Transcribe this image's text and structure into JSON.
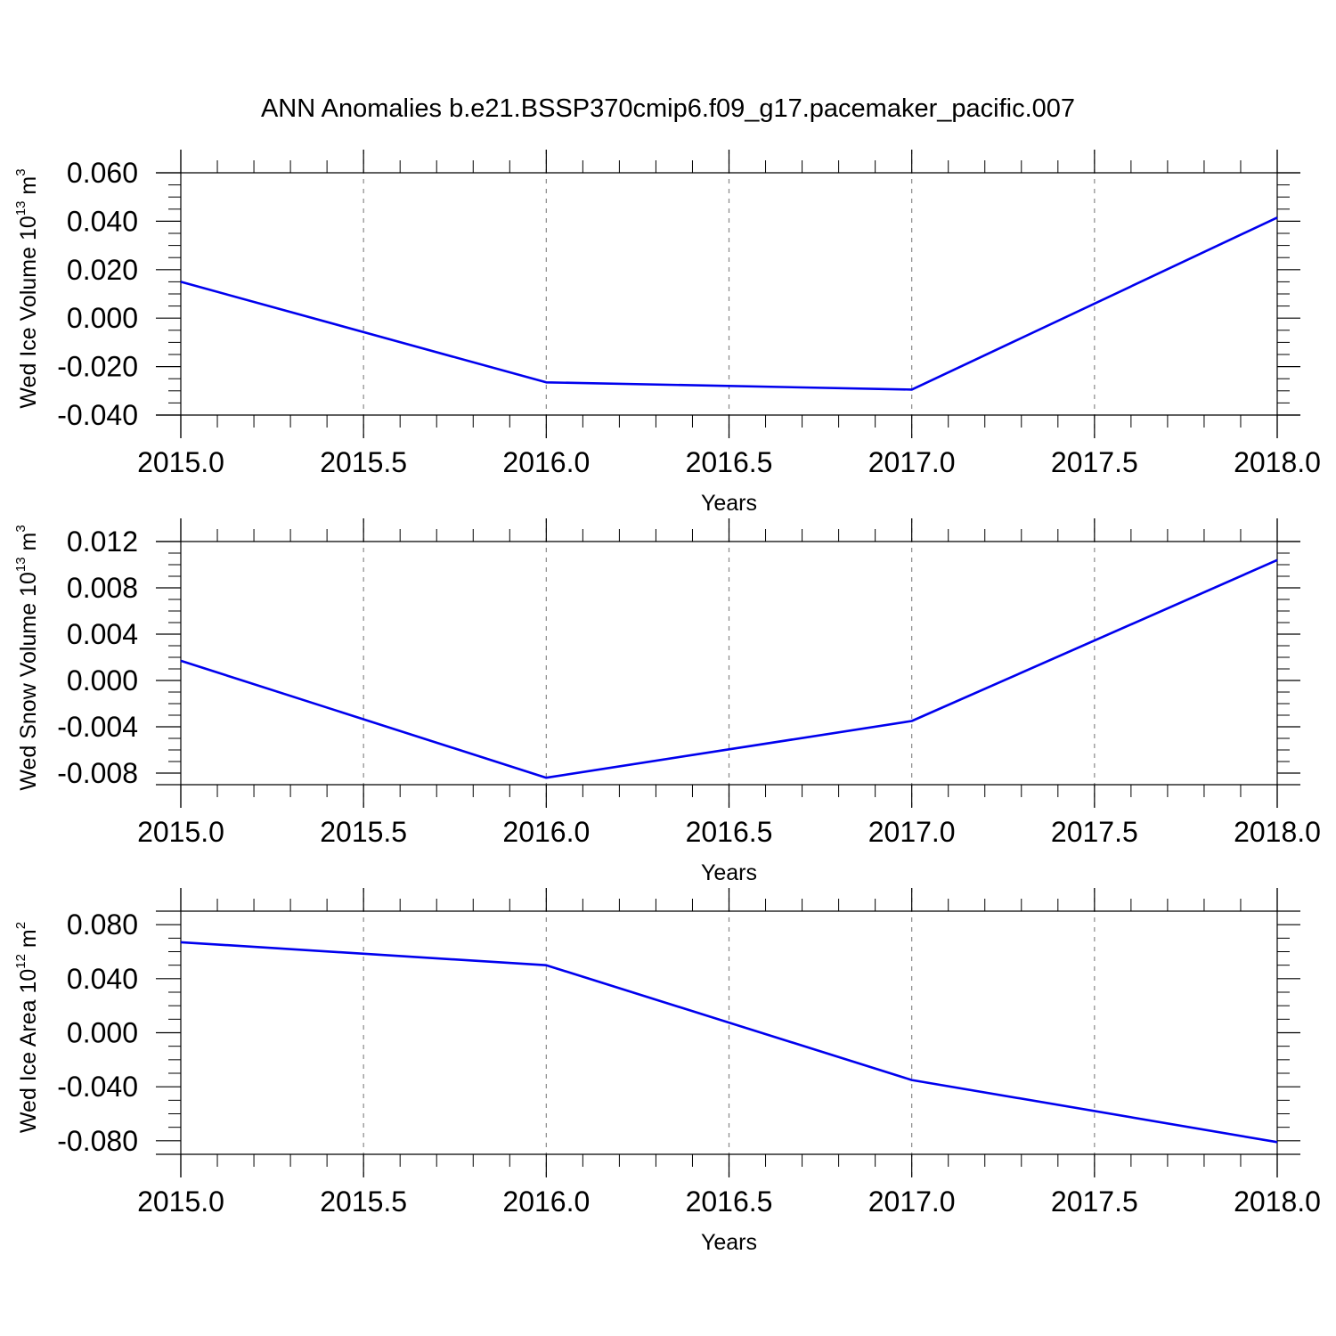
{
  "figure_title": "ANN Anomalies b.e21.BSSP370cmip6.f09_g17.pacemaker_pacific.007",
  "line_color": "#0000ee",
  "chart_data": [
    {
      "type": "line",
      "x": [
        2015.0,
        2016.0,
        2017.0,
        2018.0
      ],
      "series": [
        {
          "values": [
            0.015,
            -0.0265,
            -0.0295,
            0.0415
          ]
        }
      ],
      "xlabel": "Years",
      "ylabel": {
        "text": "Wed Ice Volume 10",
        "exp1": "13",
        "mid": " m",
        "exp2": "3"
      },
      "xlim": [
        2015.0,
        2018.0
      ],
      "ylim": [
        -0.04,
        0.06
      ],
      "xticks": [
        2015.0,
        2015.5,
        2016.0,
        2016.5,
        2017.0,
        2017.5,
        2018.0
      ],
      "xtick_labels": [
        "2015.0",
        "2015.5",
        "2016.0",
        "2016.5",
        "2017.0",
        "2017.5",
        "2018.0"
      ],
      "yticks": [
        -0.04,
        -0.02,
        0.0,
        0.02,
        0.04,
        0.06
      ],
      "ytick_labels": [
        "-0.040",
        "-0.020",
        "0.000",
        "0.020",
        "0.040",
        "0.060"
      ],
      "grid": "vertical dashed at x ticks"
    },
    {
      "type": "line",
      "x": [
        2015.0,
        2016.0,
        2017.0,
        2018.0
      ],
      "series": [
        {
          "values": [
            0.0017,
            -0.0084,
            -0.0035,
            0.0104
          ]
        }
      ],
      "xlabel": "Years",
      "ylabel": {
        "text": "Wed Snow Volume 10",
        "exp1": "13",
        "mid": " m",
        "exp2": "3"
      },
      "xlim": [
        2015.0,
        2018.0
      ],
      "ylim": [
        -0.009,
        0.012
      ],
      "xticks": [
        2015.0,
        2015.5,
        2016.0,
        2016.5,
        2017.0,
        2017.5,
        2018.0
      ],
      "xtick_labels": [
        "2015.0",
        "2015.5",
        "2016.0",
        "2016.5",
        "2017.0",
        "2017.5",
        "2018.0"
      ],
      "yticks": [
        -0.008,
        -0.004,
        0.0,
        0.004,
        0.008,
        0.012
      ],
      "ytick_labels": [
        "-0.008",
        "-0.004",
        "0.000",
        "0.004",
        "0.008",
        "0.012"
      ],
      "grid": "vertical dashed at x ticks"
    },
    {
      "type": "line",
      "x": [
        2015.0,
        2016.0,
        2017.0,
        2018.0
      ],
      "series": [
        {
          "values": [
            0.067,
            0.05,
            -0.035,
            -0.081
          ]
        }
      ],
      "xlabel": "Years",
      "ylabel": {
        "text": "Wed Ice Area 10",
        "exp1": "12",
        "mid": " m",
        "exp2": "2"
      },
      "xlim": [
        2015.0,
        2018.0
      ],
      "ylim": [
        -0.09,
        0.09
      ],
      "xticks": [
        2015.0,
        2015.5,
        2016.0,
        2016.5,
        2017.0,
        2017.5,
        2018.0
      ],
      "xtick_labels": [
        "2015.0",
        "2015.5",
        "2016.0",
        "2016.5",
        "2017.0",
        "2017.5",
        "2018.0"
      ],
      "yticks": [
        -0.08,
        -0.04,
        0.0,
        0.04,
        0.08
      ],
      "ytick_labels": [
        "-0.080",
        "-0.040",
        "0.000",
        "0.040",
        "0.080"
      ],
      "grid": "vertical dashed at x ticks"
    }
  ]
}
